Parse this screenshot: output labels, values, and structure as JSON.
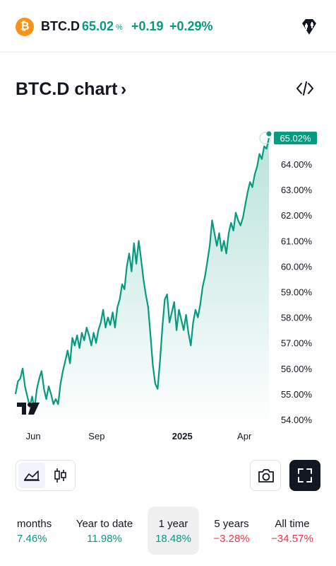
{
  "header": {
    "coin_symbol_glyph": "₿",
    "symbol": "BTC.D",
    "price": "65.02",
    "price_unit": "%",
    "change": "+0.19",
    "change_percent": "+0.29%"
  },
  "title": "BTC.D chart",
  "title_chevron": "›",
  "colors": {
    "accent_green": "#089981",
    "negative_red": "#f23645",
    "coin_orange": "#f7931a"
  },
  "chart_data": {
    "type": "area",
    "x_ticks": [
      "Jun",
      "Sep",
      "2025",
      "Apr"
    ],
    "y_ticks": [
      "54.00%",
      "55.00%",
      "56.00%",
      "57.00%",
      "58.00%",
      "59.00%",
      "60.00%",
      "61.00%",
      "62.00%",
      "63.00%",
      "64.00%"
    ],
    "last_value_label": "65.02%",
    "ylim": [
      54,
      65.5
    ],
    "series": [
      {
        "values": [
          55.0,
          55.5,
          55.6,
          56.0,
          55.3,
          54.9,
          54.5,
          54.9,
          54.4,
          55.2,
          55.6,
          55.9,
          55.2,
          54.8,
          55.3,
          55.0,
          54.6,
          54.8,
          54.6,
          55.4,
          55.9,
          56.3,
          56.7,
          56.2,
          57.2,
          56.9,
          57.3,
          56.8,
          57.4,
          57.1,
          57.6,
          57.3,
          56.9,
          57.4,
          57.0,
          57.5,
          57.8,
          58.3,
          57.6,
          58.0,
          57.7,
          58.2,
          57.6,
          58.4,
          58.7,
          59.3,
          59.1,
          60.0,
          60.5,
          59.8,
          60.9,
          60.1,
          61.0,
          60.3,
          59.5,
          58.9,
          58.4,
          57.3,
          56.1,
          55.4,
          55.2,
          56.3,
          57.6,
          58.7,
          58.9,
          57.8,
          58.2,
          58.6,
          57.5,
          58.3,
          57.9,
          57.5,
          58.1,
          57.4,
          56.9,
          57.8,
          58.3,
          58.0,
          58.5,
          59.2,
          59.6,
          60.2,
          60.8,
          61.8,
          61.3,
          60.8,
          61.3,
          60.6,
          61.0,
          60.5,
          61.3,
          61.7,
          61.4,
          62.1,
          61.8,
          61.6,
          61.9,
          62.4,
          62.9,
          63.3,
          63.1,
          63.6,
          63.9,
          64.4,
          64.2,
          64.7,
          64.6,
          65.02
        ]
      }
    ],
    "legend": "none",
    "grid": false
  },
  "chart_controls": {
    "area_chart_icon": "area-chart-icon",
    "candles_icon": "candlestick-icon",
    "camera_icon": "camera-icon",
    "fullscreen_icon": "fullscreen-icon"
  },
  "ranges": [
    {
      "label": "months",
      "value": "7.46%",
      "positive": true
    },
    {
      "label": "Year to date",
      "value": "11.98%",
      "positive": true
    },
    {
      "label": "1 year",
      "value": "18.48%",
      "positive": true,
      "selected": true
    },
    {
      "label": "5 years",
      "value": "−3.28%",
      "positive": false
    },
    {
      "label": "All time",
      "value": "−34.57%",
      "positive": false
    }
  ]
}
